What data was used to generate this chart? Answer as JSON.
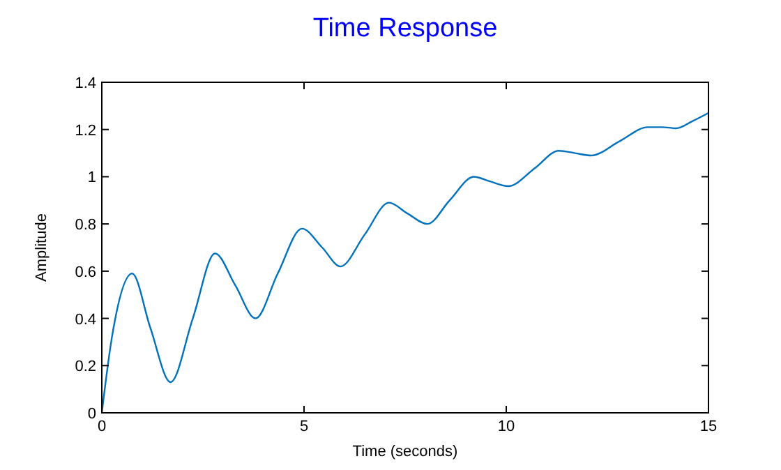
{
  "chart_data": {
    "type": "line",
    "title": "Time Response",
    "xlabel": "Time (seconds)",
    "ylabel": "Amplitude",
    "xlim": [
      0,
      15
    ],
    "ylim": [
      0,
      1.4
    ],
    "xticks": [
      0,
      5,
      10,
      15
    ],
    "yticks": [
      0,
      0.2,
      0.4,
      0.6,
      0.8,
      1,
      1.2,
      1.4
    ],
    "grid": false,
    "series": [
      {
        "color": "#0072bd",
        "x": [
          0,
          0.25,
          0.75,
          1.2,
          1.7,
          2.25,
          2.8,
          3.3,
          3.8,
          4.35,
          4.95,
          5.45,
          5.9,
          6.5,
          7.1,
          7.55,
          8.05,
          8.6,
          9.2,
          9.6,
          10.05,
          10.7,
          11.3,
          11.7,
          12.1,
          12.8,
          13.5,
          13.85,
          14.2,
          14.6,
          15
        ],
        "values": [
          0,
          0.32,
          0.59,
          0.36,
          0.13,
          0.4,
          0.675,
          0.54,
          0.4,
          0.59,
          0.78,
          0.7,
          0.62,
          0.755,
          0.89,
          0.845,
          0.8,
          0.9,
          1,
          0.98,
          0.96,
          1.035,
          1.11,
          1.1,
          1.09,
          1.15,
          1.21,
          1.21,
          1.205,
          1.235,
          1.27
        ]
      }
    ]
  }
}
